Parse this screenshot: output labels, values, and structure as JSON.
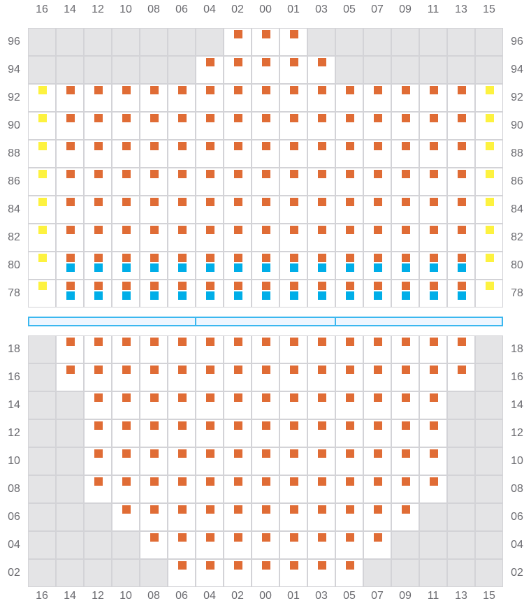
{
  "colors": {
    "orange": "#e06c35",
    "blue": "#00aee8",
    "yellow": "#fdf23f",
    "unavailable": "#e4e4e6"
  },
  "columns": [
    "16",
    "14",
    "12",
    "10",
    "08",
    "06",
    "04",
    "02",
    "00",
    "01",
    "03",
    "05",
    "07",
    "09",
    "11",
    "13",
    "15"
  ],
  "top_section": {
    "rows": [
      {
        "label": "96",
        "cells": [
          "x",
          "x",
          "x",
          "x",
          "x",
          "x",
          "x",
          "o",
          "o",
          "o",
          "x",
          "x",
          "x",
          "x",
          "x",
          "x",
          "x"
        ]
      },
      {
        "label": "94",
        "cells": [
          "x",
          "x",
          "x",
          "x",
          "x",
          "x",
          "o",
          "o",
          "o",
          "o",
          "o",
          "x",
          "x",
          "x",
          "x",
          "x",
          "x"
        ]
      },
      {
        "label": "92",
        "cells": [
          "y",
          "o",
          "o",
          "o",
          "o",
          "o",
          "o",
          "o",
          "o",
          "o",
          "o",
          "o",
          "o",
          "o",
          "o",
          "o",
          "y"
        ]
      },
      {
        "label": "90",
        "cells": [
          "y",
          "o",
          "o",
          "o",
          "o",
          "o",
          "o",
          "o",
          "o",
          "o",
          "o",
          "o",
          "o",
          "o",
          "o",
          "o",
          "y"
        ]
      },
      {
        "label": "88",
        "cells": [
          "y",
          "o",
          "o",
          "o",
          "o",
          "o",
          "o",
          "o",
          "o",
          "o",
          "o",
          "o",
          "o",
          "o",
          "o",
          "o",
          "y"
        ]
      },
      {
        "label": "86",
        "cells": [
          "y",
          "o",
          "o",
          "o",
          "o",
          "o",
          "o",
          "o",
          "o",
          "o",
          "o",
          "o",
          "o",
          "o",
          "o",
          "o",
          "y"
        ]
      },
      {
        "label": "84",
        "cells": [
          "y",
          "o",
          "o",
          "o",
          "o",
          "o",
          "o",
          "o",
          "o",
          "o",
          "o",
          "o",
          "o",
          "o",
          "o",
          "o",
          "y"
        ]
      },
      {
        "label": "82",
        "cells": [
          "y",
          "o",
          "o",
          "o",
          "o",
          "o",
          "o",
          "o",
          "o",
          "o",
          "o",
          "o",
          "o",
          "o",
          "o",
          "o",
          "y"
        ]
      },
      {
        "label": "80",
        "cells": [
          "y",
          "ob",
          "ob",
          "ob",
          "ob",
          "ob",
          "ob",
          "ob",
          "ob",
          "ob",
          "ob",
          "ob",
          "ob",
          "ob",
          "ob",
          "ob",
          "y"
        ]
      },
      {
        "label": "78",
        "cells": [
          "y",
          "ob",
          "ob",
          "ob",
          "ob",
          "ob",
          "ob",
          "ob",
          "ob",
          "ob",
          "ob",
          "ob",
          "ob",
          "ob",
          "ob",
          "ob",
          "y"
        ]
      }
    ]
  },
  "bottom_section": {
    "rows": [
      {
        "label": "18",
        "cells": [
          "x",
          "o",
          "o",
          "o",
          "o",
          "o",
          "o",
          "o",
          "o",
          "o",
          "o",
          "o",
          "o",
          "o",
          "o",
          "o",
          "x"
        ]
      },
      {
        "label": "16",
        "cells": [
          "x",
          "o",
          "o",
          "o",
          "o",
          "o",
          "o",
          "o",
          "o",
          "o",
          "o",
          "o",
          "o",
          "o",
          "o",
          "o",
          "x"
        ]
      },
      {
        "label": "14",
        "cells": [
          "x",
          "x",
          "o",
          "o",
          "o",
          "o",
          "o",
          "o",
          "o",
          "o",
          "o",
          "o",
          "o",
          "o",
          "o",
          "x",
          "x"
        ]
      },
      {
        "label": "12",
        "cells": [
          "x",
          "x",
          "o",
          "o",
          "o",
          "o",
          "o",
          "o",
          "o",
          "o",
          "o",
          "o",
          "o",
          "o",
          "o",
          "x",
          "x"
        ]
      },
      {
        "label": "10",
        "cells": [
          "x",
          "x",
          "o",
          "o",
          "o",
          "o",
          "o",
          "o",
          "o",
          "o",
          "o",
          "o",
          "o",
          "o",
          "o",
          "x",
          "x"
        ]
      },
      {
        "label": "08",
        "cells": [
          "x",
          "x",
          "o",
          "o",
          "o",
          "o",
          "o",
          "o",
          "o",
          "o",
          "o",
          "o",
          "o",
          "o",
          "o",
          "x",
          "x"
        ]
      },
      {
        "label": "06",
        "cells": [
          "x",
          "x",
          "x",
          "o",
          "o",
          "o",
          "o",
          "o",
          "o",
          "o",
          "o",
          "o",
          "o",
          "o",
          "x",
          "x",
          "x"
        ]
      },
      {
        "label": "04",
        "cells": [
          "x",
          "x",
          "x",
          "x",
          "o",
          "o",
          "o",
          "o",
          "o",
          "o",
          "o",
          "o",
          "o",
          "x",
          "x",
          "x",
          "x"
        ]
      },
      {
        "label": "02",
        "cells": [
          "x",
          "x",
          "x",
          "x",
          "x",
          "o",
          "o",
          "o",
          "o",
          "o",
          "o",
          "o",
          "x",
          "x",
          "x",
          "x",
          "x"
        ]
      }
    ]
  }
}
